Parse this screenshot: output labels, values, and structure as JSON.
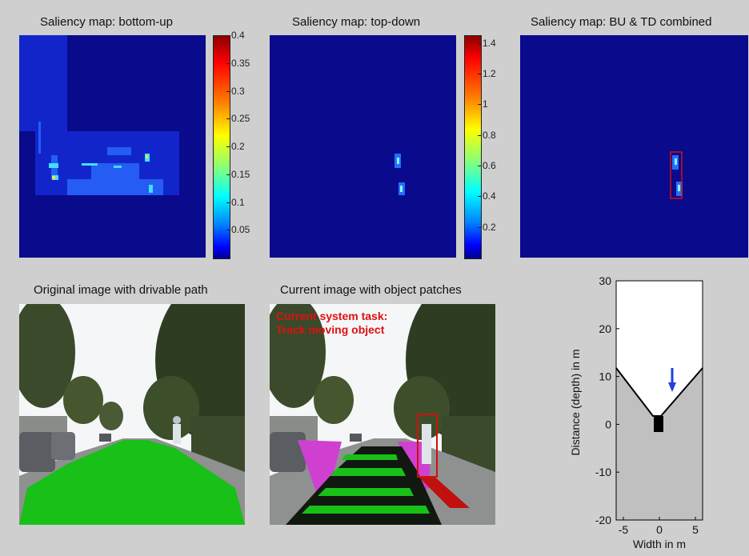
{
  "titles": {
    "bottom_up": "Saliency map: bottom-up",
    "top_down": "Saliency map: top-down",
    "combined": "Saliency map: BU & TD combined",
    "original": "Original image with drivable path",
    "current": "Current image with object patches"
  },
  "colorbar_bu": {
    "ticks": [
      "0.4",
      "0.35",
      "0.3",
      "0.25",
      "0.2",
      "0.15",
      "0.1",
      "0.05"
    ]
  },
  "colorbar_td": {
    "ticks": [
      "1.4",
      "1.2",
      "1",
      "0.8",
      "0.6",
      "0.4",
      "0.2"
    ]
  },
  "overlay": {
    "line1": "Current system task:",
    "line2": "Track moving object"
  },
  "depth_plot": {
    "xlabel": "Width in m",
    "ylabel": "Distance (depth) in m",
    "xticks": [
      "-5",
      "0",
      "5"
    ],
    "yticks": [
      "30",
      "20",
      "10",
      "0",
      "-10",
      "-20"
    ],
    "colors": {
      "free": "#ffffff",
      "occupied": "#c0c0c0",
      "arrow": "#2040e0",
      "vehicle": "#000000"
    }
  }
}
